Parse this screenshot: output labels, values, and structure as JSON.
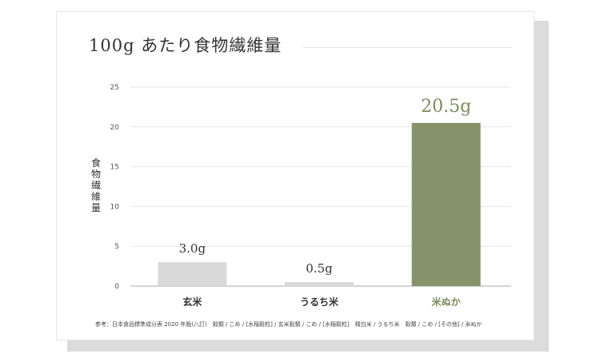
{
  "chart_data": {
    "type": "bar",
    "title": "100g あたり食物繊維量",
    "ylabel": "食物繊維量",
    "xlabel": "",
    "categories": [
      "玄米",
      "うるち米",
      "米ぬか"
    ],
    "values": [
      3.0,
      0.5,
      20.5
    ],
    "value_labels": [
      "3.0g",
      "0.5g",
      "20.5g"
    ],
    "ylim": [
      0,
      25
    ],
    "yticks": [
      0,
      5,
      10,
      15,
      20,
      25
    ],
    "grid": true,
    "colors": {
      "default_bar": "#d9d9d9",
      "highlight_bar": "#86936a",
      "highlight_text": "#7d8a5e",
      "grid": "#e6e6e6",
      "axis": "#aaaaaa"
    },
    "highlight_index": 2
  },
  "source": "参考：日本食品標準成分表 2020 年版(八訂)　穀類 / こめ / [水稲穀粒] / 玄米穀類 / こめ / [水稲穀粒]　精白米 / うるち米　穀類 / こめ / [その他] / 米ぬか"
}
